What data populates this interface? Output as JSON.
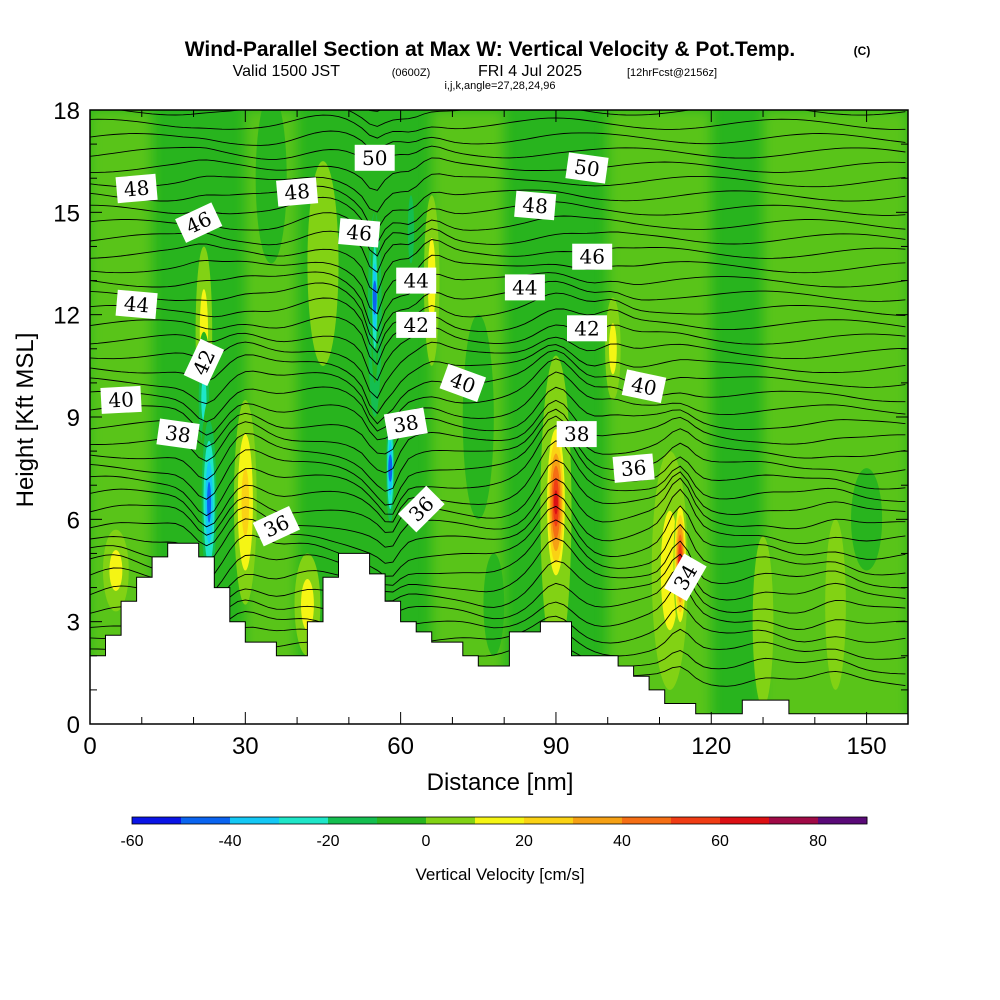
{
  "title": {
    "main": "Wind-Parallel Section at Max W: Vertical Velocity & Pot.Temp.",
    "copyright": "(C)",
    "valid_prefix": "Valid 1500 JST",
    "utc": "(0600Z)",
    "date": "FRI 4 Jul 2025",
    "forecast": "[12hrFcst@2156z]",
    "indices": "i,j,k,angle=27,28,24,96"
  },
  "chart_data": {
    "type": "heatmap",
    "xlabel": "Distance [nm]",
    "ylabel": "Height [Kft MSL]",
    "xlim": [
      0,
      158
    ],
    "ylim": [
      0,
      18
    ],
    "x_ticks": [
      0,
      30,
      60,
      90,
      120,
      150
    ],
    "y_ticks": [
      0,
      3,
      6,
      9,
      12,
      15,
      18
    ],
    "colorbar": {
      "title": "Vertical Velocity [cm/s]",
      "min": -60,
      "max": 90,
      "step": 10,
      "tick_values": [
        -60,
        -40,
        -20,
        0,
        20,
        40,
        60,
        80
      ],
      "colors": [
        "#0a14e6",
        "#0a64f0",
        "#14c8f5",
        "#1ee6c8",
        "#14be50",
        "#28b41e",
        "#82d214",
        "#f5f514",
        "#fad214",
        "#f5a014",
        "#f56e14",
        "#f03c14",
        "#dc0f14",
        "#a00a46",
        "#5a0a78"
      ]
    },
    "terrain": [
      [
        0,
        2.0
      ],
      [
        3,
        2.0
      ],
      [
        3,
        2.6
      ],
      [
        6,
        2.6
      ],
      [
        6,
        3.6
      ],
      [
        9,
        3.6
      ],
      [
        9,
        4.3
      ],
      [
        12,
        4.3
      ],
      [
        12,
        4.9
      ],
      [
        15,
        4.9
      ],
      [
        15,
        5.3
      ],
      [
        21,
        5.3
      ],
      [
        21,
        4.9
      ],
      [
        24,
        4.9
      ],
      [
        24,
        4.0
      ],
      [
        27,
        4.0
      ],
      [
        27,
        3.0
      ],
      [
        30,
        3.0
      ],
      [
        30,
        2.4
      ],
      [
        36,
        2.4
      ],
      [
        36,
        2.0
      ],
      [
        42,
        2.0
      ],
      [
        42,
        3.0
      ],
      [
        45,
        3.0
      ],
      [
        45,
        4.3
      ],
      [
        48,
        4.3
      ],
      [
        48,
        5.0
      ],
      [
        54,
        5.0
      ],
      [
        54,
        4.4
      ],
      [
        57,
        4.4
      ],
      [
        57,
        3.6
      ],
      [
        60,
        3.6
      ],
      [
        60,
        3.0
      ],
      [
        63,
        3.0
      ],
      [
        63,
        2.7
      ],
      [
        66,
        2.7
      ],
      [
        66,
        2.4
      ],
      [
        72,
        2.4
      ],
      [
        72,
        2.0
      ],
      [
        75,
        2.0
      ],
      [
        75,
        1.7
      ],
      [
        78,
        1.7
      ],
      [
        78,
        1.7
      ],
      [
        81,
        1.7
      ],
      [
        81,
        2.7
      ],
      [
        87,
        2.7
      ],
      [
        87,
        3.0
      ],
      [
        93,
        3.0
      ],
      [
        93,
        2.0
      ],
      [
        102,
        2.0
      ],
      [
        102,
        1.7
      ],
      [
        105,
        1.7
      ],
      [
        105,
        1.4
      ],
      [
        108,
        1.4
      ],
      [
        108,
        1.0
      ],
      [
        111,
        1.0
      ],
      [
        111,
        0.6
      ],
      [
        117,
        0.6
      ],
      [
        117,
        0.3
      ],
      [
        126,
        0.3
      ],
      [
        126,
        0.7
      ],
      [
        135,
        0.7
      ],
      [
        135,
        0.3
      ],
      [
        158,
        0.3
      ]
    ],
    "wblobs": [
      {
        "x": 23,
        "y": 6.5,
        "rx": 1.8,
        "ry": 3.0,
        "w": -50
      },
      {
        "x": 22,
        "y": 9.5,
        "rx": 1.5,
        "ry": 2.0,
        "w": -30
      },
      {
        "x": 30,
        "y": 6.5,
        "rx": 2.2,
        "ry": 3.0,
        "w": 35
      },
      {
        "x": 22,
        "y": 11.5,
        "rx": 1.6,
        "ry": 2.5,
        "w": 25
      },
      {
        "x": 55,
        "y": 12.0,
        "rx": 2.0,
        "ry": 4.5,
        "w": -35
      },
      {
        "x": 55,
        "y": 12.5,
        "rx": 0.8,
        "ry": 2.5,
        "w": -58
      },
      {
        "x": 58,
        "y": 7.5,
        "rx": 1.0,
        "ry": 2.0,
        "w": -50
      },
      {
        "x": 66,
        "y": 13.0,
        "rx": 1.5,
        "ry": 2.5,
        "w": 20
      },
      {
        "x": 62,
        "y": 14.5,
        "rx": 1.2,
        "ry": 2.0,
        "w": -20
      },
      {
        "x": 90,
        "y": 6.3,
        "rx": 3.0,
        "ry": 4.5,
        "w": 28
      },
      {
        "x": 90,
        "y": 6.5,
        "rx": 2.0,
        "ry": 2.5,
        "w": 75
      },
      {
        "x": 112,
        "y": 4.5,
        "rx": 3.5,
        "ry": 3.5,
        "w": 25
      },
      {
        "x": 114,
        "y": 4.7,
        "rx": 1.3,
        "ry": 2.0,
        "w": 70
      },
      {
        "x": 101,
        "y": 11.0,
        "rx": 1.5,
        "ry": 1.5,
        "w": 20
      },
      {
        "x": 5,
        "y": 4.5,
        "rx": 2.5,
        "ry": 1.2,
        "w": 20
      },
      {
        "x": 45,
        "y": 13.5,
        "rx": 3.0,
        "ry": 3.0,
        "w": 18
      },
      {
        "x": 42,
        "y": 3.5,
        "rx": 2.5,
        "ry": 1.5,
        "w": 20
      },
      {
        "x": 78,
        "y": 3.5,
        "rx": 2.0,
        "ry": 1.5,
        "w": -10
      },
      {
        "x": 130,
        "y": 3.0,
        "rx": 2.0,
        "ry": 2.5,
        "w": 15
      },
      {
        "x": 144,
        "y": 3.5,
        "rx": 2.0,
        "ry": 2.5,
        "w": 18
      },
      {
        "x": 150,
        "y": 6.0,
        "rx": 3.0,
        "ry": 1.5,
        "w": -5
      },
      {
        "x": 35,
        "y": 16.0,
        "rx": 3.0,
        "ry": 2.5,
        "w": -5
      },
      {
        "x": 75,
        "y": 9.0,
        "rx": 3.0,
        "ry": 3.0,
        "w": -5
      }
    ],
    "contour_labels": [
      {
        "text": "48",
        "x": 9,
        "y": 15.7,
        "angle": -5
      },
      {
        "text": "46",
        "x": 21,
        "y": 14.7,
        "angle": -25
      },
      {
        "text": "44",
        "x": 9,
        "y": 12.3,
        "angle": 5
      },
      {
        "text": "42",
        "x": 22,
        "y": 10.6,
        "angle": -65
      },
      {
        "text": "40",
        "x": 6,
        "y": 9.5,
        "angle": -3
      },
      {
        "text": "38",
        "x": 17,
        "y": 8.5,
        "angle": 8
      },
      {
        "text": "36",
        "x": 36,
        "y": 5.8,
        "angle": -25
      },
      {
        "text": "48",
        "x": 40,
        "y": 15.6,
        "angle": -5
      },
      {
        "text": "50",
        "x": 55,
        "y": 16.6,
        "angle": 0
      },
      {
        "text": "46",
        "x": 52,
        "y": 14.4,
        "angle": 5
      },
      {
        "text": "44",
        "x": 63,
        "y": 13.0,
        "angle": 0
      },
      {
        "text": "42",
        "x": 63,
        "y": 11.7,
        "angle": 0
      },
      {
        "text": "40",
        "x": 72,
        "y": 10.0,
        "angle": 20
      },
      {
        "text": "38",
        "x": 61,
        "y": 8.8,
        "angle": -10
      },
      {
        "text": "36",
        "x": 64,
        "y": 6.3,
        "angle": -45
      },
      {
        "text": "50",
        "x": 96,
        "y": 16.3,
        "angle": 8
      },
      {
        "text": "48",
        "x": 86,
        "y": 15.2,
        "angle": 5
      },
      {
        "text": "46",
        "x": 97,
        "y": 13.7,
        "angle": 0
      },
      {
        "text": "44",
        "x": 84,
        "y": 12.8,
        "angle": 0
      },
      {
        "text": "42",
        "x": 96,
        "y": 11.6,
        "angle": 0
      },
      {
        "text": "40",
        "x": 107,
        "y": 9.9,
        "angle": 12
      },
      {
        "text": "38",
        "x": 94,
        "y": 8.5,
        "angle": 0
      },
      {
        "text": "36",
        "x": 105,
        "y": 7.5,
        "angle": -5
      },
      {
        "text": "34",
        "x": 115,
        "y": 4.3,
        "angle": -60
      }
    ]
  }
}
